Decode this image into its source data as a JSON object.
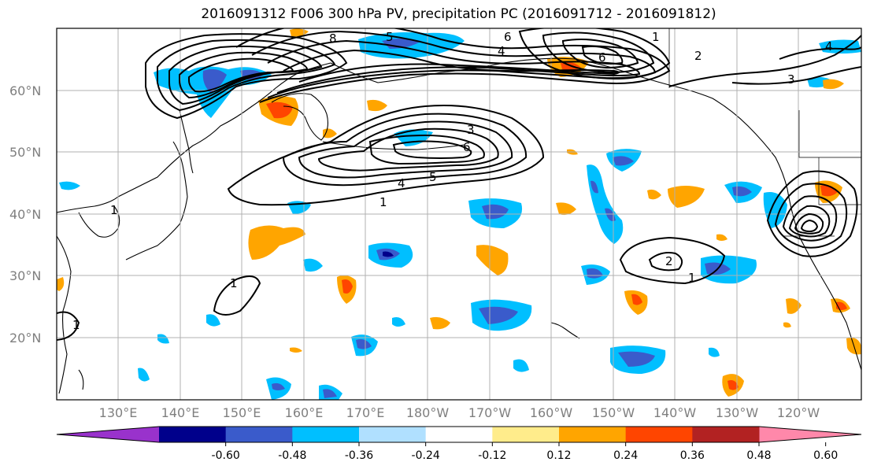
{
  "title": "2016091312 F006 300 hPa PV, precipitation PC (2016091712 - 2016091812)",
  "map": {
    "lat_labels": [
      "60°N",
      "50°N",
      "40°N",
      "30°N",
      "20°N"
    ],
    "lon_labels": [
      "130°E",
      "140°E",
      "150°E",
      "160°E",
      "170°E",
      "180°W",
      "170°W",
      "160°W",
      "150°W",
      "140°W",
      "130°W",
      "120°W"
    ],
    "grid": true,
    "pv_contour_labels": [
      "8",
      "6",
      "5",
      "4",
      "3",
      "2",
      "1",
      "6",
      "6",
      "4",
      "5",
      "1",
      "3",
      "2",
      "1",
      "1",
      "1",
      "1",
      "4"
    ]
  },
  "colorbar": {
    "colors": [
      "#9932cc",
      "#00008b",
      "#3a5bcb",
      "#00bfff",
      "#b0e0ff",
      "#ffffff",
      "#ffec8b",
      "#ffa500",
      "#ff4500",
      "#b22222",
      "#ff88aa"
    ],
    "tick_labels": [
      "-0.60",
      "-0.48",
      "-0.36",
      "-0.24",
      "-0.12",
      "0.12",
      "0.24",
      "0.36",
      "0.48",
      "0.60"
    ]
  }
}
